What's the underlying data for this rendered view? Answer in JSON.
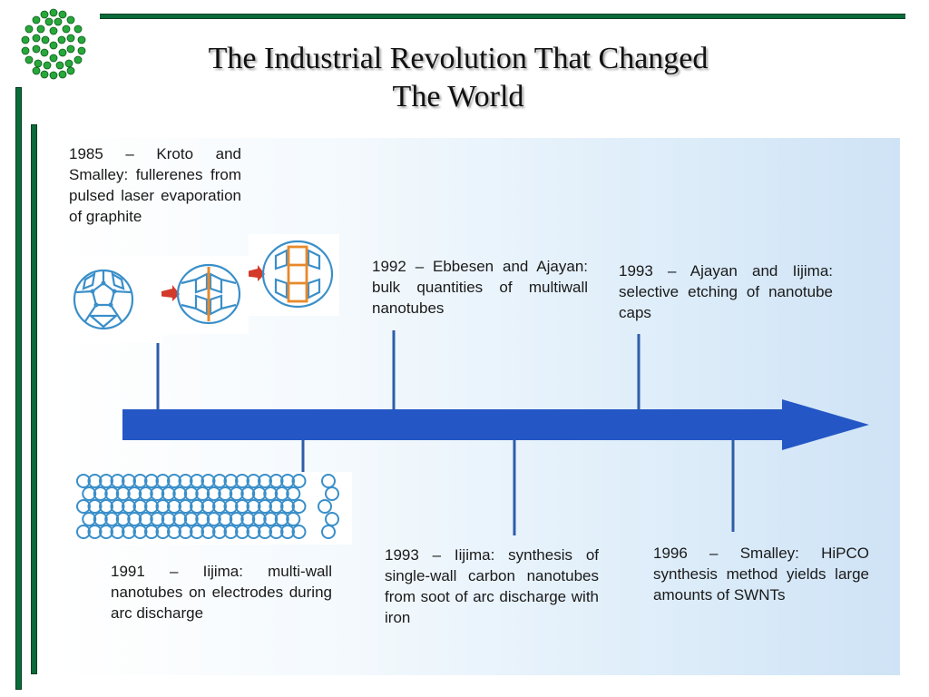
{
  "slide": {
    "title_line1": "The Industrial Revolution That Changed",
    "title_line2": "The World"
  },
  "colors": {
    "arrow": "#2457c5",
    "connector": "#2e5ea8",
    "frame_green": "#0b6b3a",
    "molecule": "#3a8fc9",
    "molecule_highlight": "#e8892b"
  },
  "events": [
    {
      "id": "kroto-1985",
      "text": "1985 – Kroto and Smalley: fullerenes from pulsed laser evaporation of graphite"
    },
    {
      "id": "ebbesen-1992",
      "text": "1992 – Ebbesen and Ajayan: bulk quantities of multiwall nanotubes"
    },
    {
      "id": "ajayan-1993",
      "text": "1993 – Ajayan and Iijima: selective etching of nanotube caps"
    },
    {
      "id": "iijima-1991",
      "text": "1991 – Iijima: multi-wall nanotubes on electrodes during arc discharge"
    },
    {
      "id": "iijima-1993",
      "text": "1993 – Iijima: synthesis of single-wall carbon nanotubes from soot of arc discharge with iron"
    },
    {
      "id": "smalley-1996",
      "text": "1996 – Smalley: HiPCO synthesis method yields large amounts of SWNTs"
    }
  ]
}
